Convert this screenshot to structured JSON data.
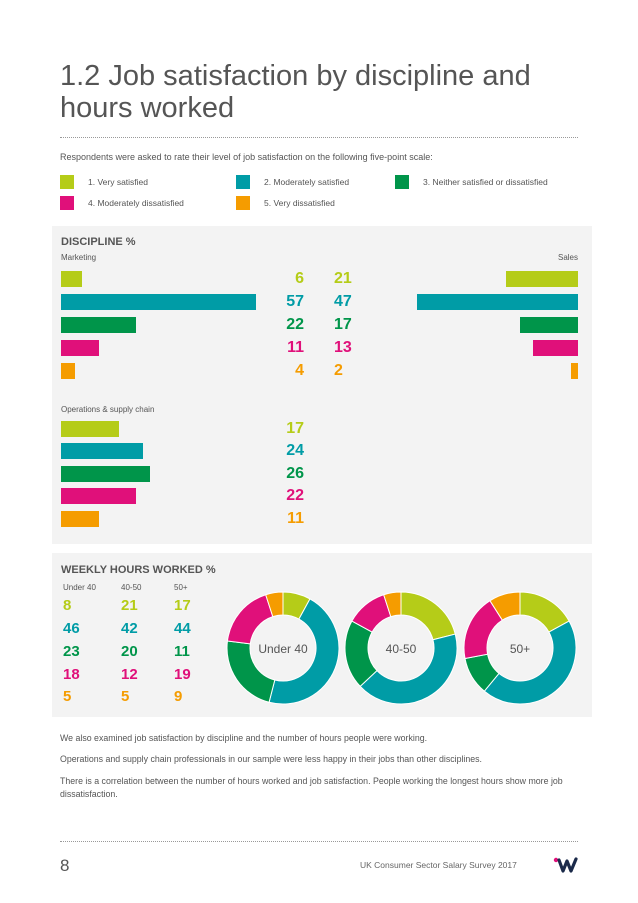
{
  "title": "1.2 Job satisfaction by discipline and hours worked",
  "intro": "Respondents were asked to rate their level of job satisfaction on the following five-point scale:",
  "legend": [
    {
      "label": "1. Very satisfied",
      "color": "#b5cc18"
    },
    {
      "label": "2. Moderately satisfied",
      "color": "#009ca6"
    },
    {
      "label": "3. Neither satisfied or dissatisfied",
      "color": "#00954a"
    },
    {
      "label": "4. Moderately dissatisfied",
      "color": "#e0107a"
    },
    {
      "label": "5. Very dissatisfied",
      "color": "#f59c00"
    }
  ],
  "discipline": {
    "heading": "DISCIPLINE %",
    "groups": [
      {
        "name": "Marketing",
        "values": [
          6,
          57,
          22,
          11,
          4
        ]
      },
      {
        "name": "Sales",
        "values": [
          21,
          47,
          17,
          13,
          2
        ]
      },
      {
        "name": "Operations & supply chain",
        "values": [
          17,
          24,
          26,
          22,
          11
        ]
      }
    ]
  },
  "hours": {
    "heading": "WEEKLY HOURS WORKED %",
    "columns": [
      {
        "name": "Under 40",
        "values": [
          8,
          46,
          23,
          18,
          5
        ]
      },
      {
        "name": "40-50",
        "values": [
          21,
          42,
          20,
          12,
          5
        ]
      },
      {
        "name": "50+",
        "values": [
          17,
          44,
          11,
          19,
          9
        ]
      }
    ]
  },
  "body": [
    "We also examined job satisfaction by discipline and the number of hours people were working.",
    "Operations and supply chain professionals in our sample were less happy in their jobs than other disciplines.",
    "There is a correlation between the number of hours worked and job satisfaction. People working the longest hours show more job dissatisfaction."
  ],
  "footer": {
    "page": "8",
    "publication": "UK Consumer Sector Salary Survey 2017",
    "logo_icon": "company-logo-icon"
  },
  "chart_data": [
    {
      "type": "bar",
      "title": "DISCIPLINE %",
      "categories": [
        "1. Very satisfied",
        "2. Moderately satisfied",
        "3. Neither satisfied or dissatisfied",
        "4. Moderately dissatisfied",
        "5. Very dissatisfied"
      ],
      "series": [
        {
          "name": "Marketing",
          "values": [
            6,
            57,
            22,
            11,
            4
          ]
        },
        {
          "name": "Sales",
          "values": [
            21,
            47,
            17,
            13,
            2
          ]
        },
        {
          "name": "Operations & supply chain",
          "values": [
            17,
            24,
            26,
            22,
            11
          ]
        }
      ]
    },
    {
      "type": "pie",
      "title": "WEEKLY HOURS WORKED %",
      "categories": [
        "1. Very satisfied",
        "2. Moderately satisfied",
        "3. Neither satisfied or dissatisfied",
        "4. Moderately dissatisfied",
        "5. Very dissatisfied"
      ],
      "series": [
        {
          "name": "Under 40",
          "values": [
            8,
            46,
            23,
            18,
            5
          ]
        },
        {
          "name": "40-50",
          "values": [
            21,
            42,
            20,
            12,
            5
          ]
        },
        {
          "name": "50+",
          "values": [
            17,
            44,
            11,
            19,
            9
          ]
        }
      ]
    }
  ]
}
